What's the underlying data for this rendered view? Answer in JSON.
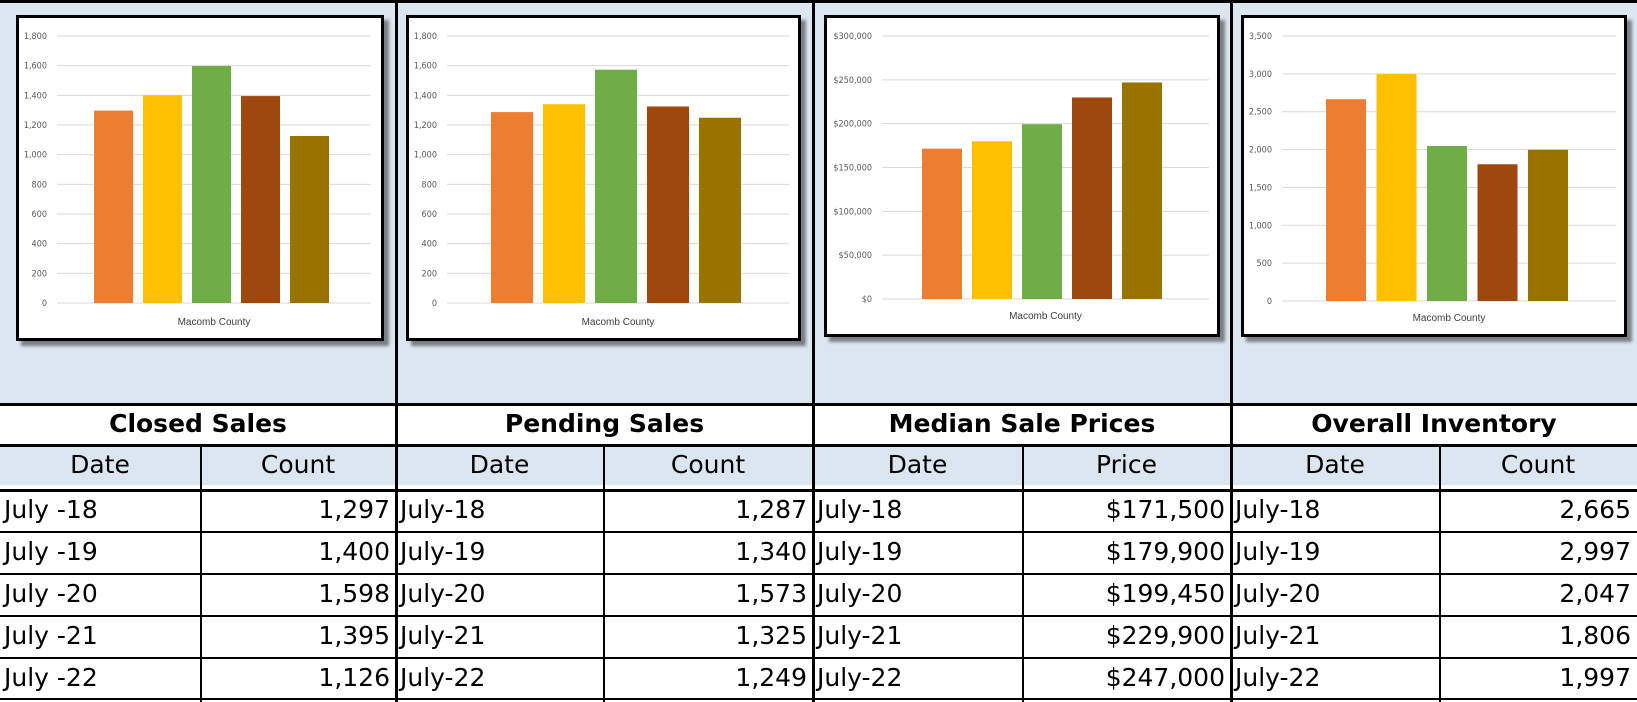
{
  "colors": {
    "series": [
      "#ed7d31",
      "#ffc000",
      "#70ad47",
      "#9e480e",
      "#997300"
    ],
    "panel_background": "#dce6f1",
    "gridline": "#d9d9d9"
  },
  "chart_data": [
    {
      "type": "bar",
      "title": "",
      "xlabel": "Macomb County",
      "ylabel": "",
      "categories": [
        "Macomb County"
      ],
      "series": [
        {
          "values": [
            1297
          ]
        },
        {
          "values": [
            1400
          ]
        },
        {
          "values": [
            1598
          ]
        },
        {
          "values": [
            1395
          ]
        },
        {
          "values": [
            1126
          ]
        }
      ],
      "ylim": [
        0,
        1800
      ],
      "yticks": [
        0,
        200,
        400,
        600,
        800,
        1000,
        1200,
        1400,
        1600,
        1800
      ],
      "ytick_labels": [
        "0",
        "200",
        "400",
        "600",
        "800",
        "1,000",
        "1,200",
        "1,400",
        "1,600",
        "1,800"
      ],
      "grid": true,
      "legend": "none"
    },
    {
      "type": "bar",
      "title": "",
      "xlabel": "Macomb County",
      "ylabel": "",
      "categories": [
        "Macomb County"
      ],
      "series": [
        {
          "values": [
            1287
          ]
        },
        {
          "values": [
            1340
          ]
        },
        {
          "values": [
            1573
          ]
        },
        {
          "values": [
            1325
          ]
        },
        {
          "values": [
            1249
          ]
        }
      ],
      "ylim": [
        0,
        1800
      ],
      "yticks": [
        0,
        200,
        400,
        600,
        800,
        1000,
        1200,
        1400,
        1600,
        1800
      ],
      "ytick_labels": [
        "0",
        "200",
        "400",
        "600",
        "800",
        "1,000",
        "1,200",
        "1,400",
        "1,600",
        "1,800"
      ],
      "grid": true,
      "legend": "none"
    },
    {
      "type": "bar",
      "title": "",
      "xlabel": "Macomb County",
      "ylabel": "",
      "categories": [
        "Macomb County"
      ],
      "series": [
        {
          "values": [
            171500
          ]
        },
        {
          "values": [
            179900
          ]
        },
        {
          "values": [
            199450
          ]
        },
        {
          "values": [
            229900
          ]
        },
        {
          "values": [
            247000
          ]
        }
      ],
      "ylim": [
        0,
        300000
      ],
      "yticks": [
        0,
        50000,
        100000,
        150000,
        200000,
        250000,
        300000
      ],
      "ytick_labels": [
        "$0",
        "$50,000",
        "$100,000",
        "$150,000",
        "$200,000",
        "$250,000",
        "$300,000"
      ],
      "grid": true,
      "legend": "none"
    },
    {
      "type": "bar",
      "title": "",
      "xlabel": "Macomb County",
      "ylabel": "",
      "categories": [
        "Macomb County"
      ],
      "series": [
        {
          "values": [
            2665
          ]
        },
        {
          "values": [
            2997
          ]
        },
        {
          "values": [
            2047
          ]
        },
        {
          "values": [
            1806
          ]
        },
        {
          "values": [
            1997
          ]
        }
      ],
      "ylim": [
        0,
        3500
      ],
      "yticks": [
        0,
        500,
        1000,
        1500,
        2000,
        2500,
        3000,
        3500
      ],
      "ytick_labels": [
        "0",
        "500",
        "1,000",
        "1,500",
        "2,000",
        "2,500",
        "3,000",
        "3,500"
      ],
      "grid": true,
      "legend": "none"
    }
  ],
  "tables": [
    {
      "title": "Closed Sales",
      "headers": [
        "Date",
        "Count"
      ],
      "rows": [
        [
          "July -18",
          "1,297"
        ],
        [
          "July -19",
          "1,400"
        ],
        [
          "July -20",
          "1,598"
        ],
        [
          "July -21",
          "1,395"
        ],
        [
          "July -22",
          "1,126"
        ]
      ]
    },
    {
      "title": "Pending Sales",
      "headers": [
        "Date",
        "Count"
      ],
      "rows": [
        [
          "July-18",
          "1,287"
        ],
        [
          "July-19",
          "1,340"
        ],
        [
          "July-20",
          "1,573"
        ],
        [
          "July-21",
          "1,325"
        ],
        [
          "July-22",
          "1,249"
        ]
      ]
    },
    {
      "title": "Median Sale Prices",
      "headers": [
        "Date",
        "Price"
      ],
      "rows": [
        [
          "July-18",
          "$171,500"
        ],
        [
          "July-19",
          "$179,900"
        ],
        [
          "July-20",
          "$199,450"
        ],
        [
          "July-21",
          "$229,900"
        ],
        [
          "July-22",
          "$247,000"
        ]
      ]
    },
    {
      "title": "Overall Inventory",
      "headers": [
        "Date",
        "Count"
      ],
      "rows": [
        [
          "July-18",
          "2,665"
        ],
        [
          "July-19",
          "2,997"
        ],
        [
          "July-20",
          "2,047"
        ],
        [
          "July-21",
          "1,806"
        ],
        [
          "July-22",
          "1,997"
        ]
      ]
    }
  ]
}
